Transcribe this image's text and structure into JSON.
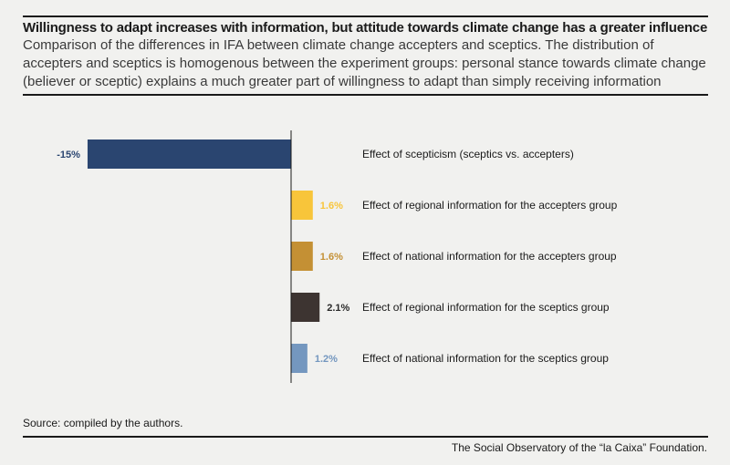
{
  "title": "Willingness to adapt increases with information, but attitude towards climate change has a greater influence",
  "subtitle": "Comparison of the differences in IFA between climate change accepters and sceptics. The distribution of accepters and sceptics is homogenous between the experiment groups: personal stance towards climate change (believer or sceptic) explains a much greater part of willingness to adapt than simply receiving information",
  "source": "Source: compiled by the authors.",
  "credit": "The Social Observatory of the “la Caixa” Foundation.",
  "chart_data": {
    "type": "bar",
    "orientation": "horizontal",
    "categories": [
      "Effect of scepticism (sceptics vs. accepters)",
      "Effect of regional information for the accepters group",
      "Effect of national information for the accepters group",
      "Effect of regional information for the sceptics group",
      "Effect of national information for the sceptics group"
    ],
    "values": [
      -15,
      1.6,
      1.6,
      2.1,
      1.2
    ],
    "value_labels": [
      "-15%",
      "1.6%",
      "1.6%",
      "2.1%",
      "1.2%"
    ],
    "colors": [
      "#2a4570",
      "#f8c53a",
      "#c49034",
      "#3d3431",
      "#7497bf"
    ],
    "xlim": [
      -15,
      2.1
    ],
    "legend": "none",
    "grid": false
  }
}
